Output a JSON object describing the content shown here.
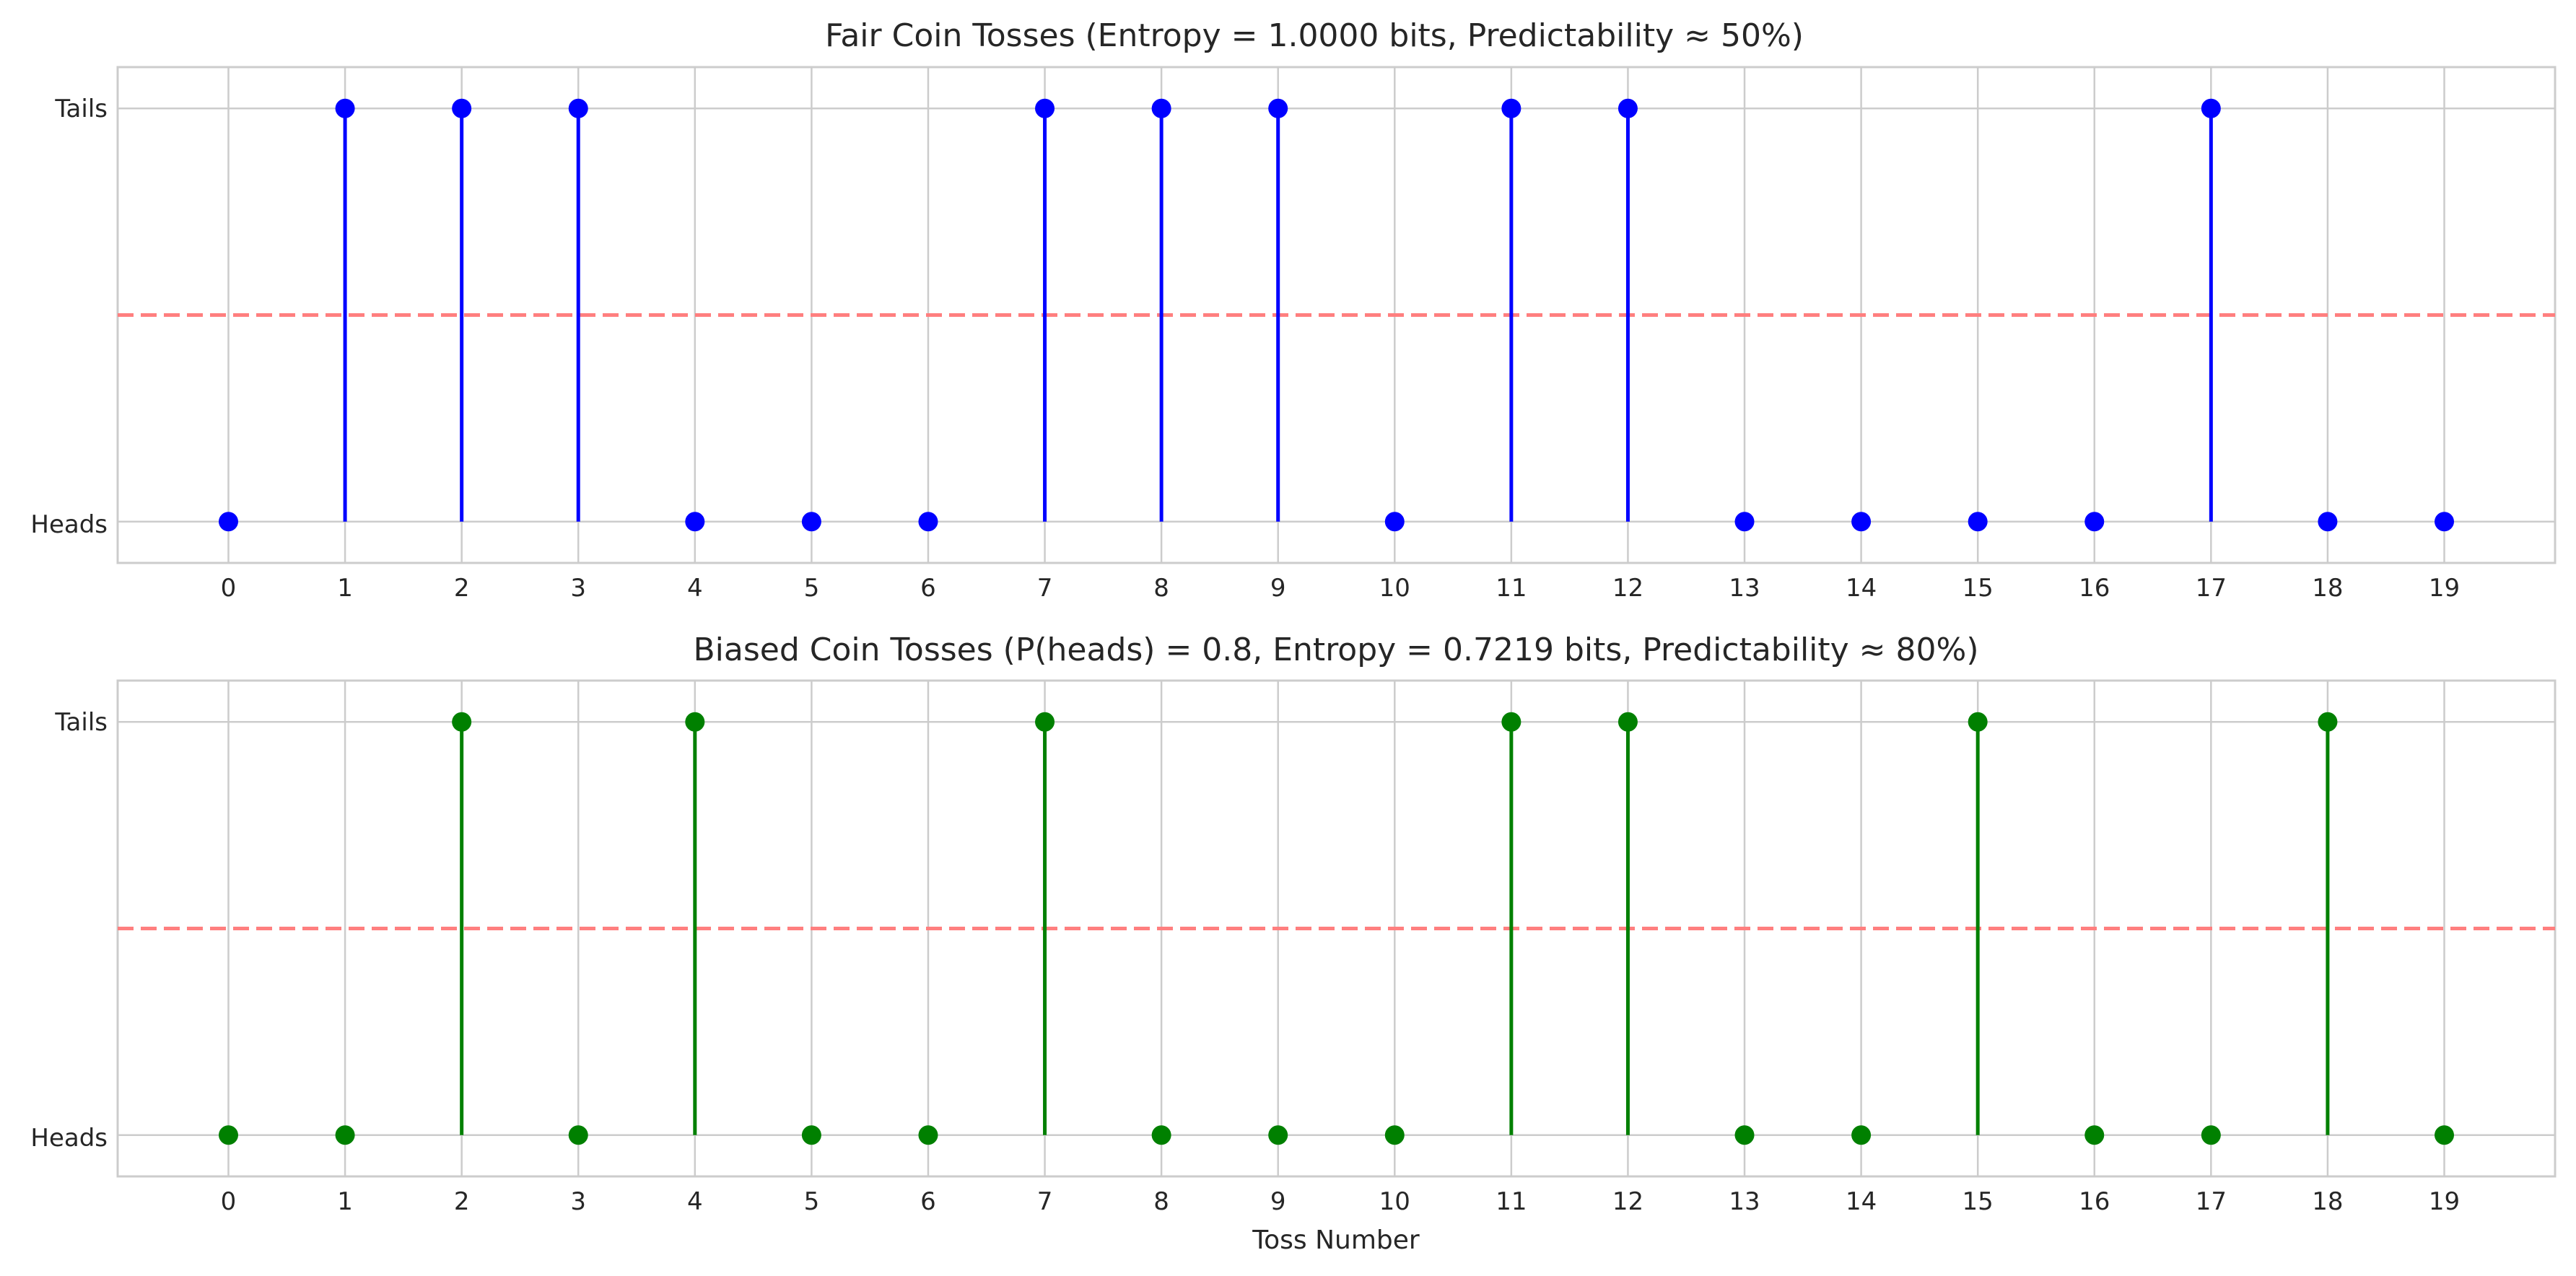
{
  "chart_data": [
    {
      "type": "stem",
      "title": "Fair Coin Tosses (Entropy = 1.0000 bits, Predictability ≈ 50%)",
      "xlabel": "",
      "ylabel": "",
      "y_tick_labels": [
        "Heads",
        "Tails"
      ],
      "x": [
        0,
        1,
        2,
        3,
        4,
        5,
        6,
        7,
        8,
        9,
        10,
        11,
        12,
        13,
        14,
        15,
        16,
        17,
        18,
        19
      ],
      "values": [
        0,
        1,
        1,
        1,
        0,
        0,
        0,
        1,
        1,
        1,
        0,
        1,
        1,
        0,
        0,
        0,
        0,
        1,
        0,
        0
      ],
      "value_meaning": {
        "0": "Heads",
        "1": "Tails"
      },
      "reference_line": {
        "y": 0.5,
        "style": "dashed",
        "color": "#ff7f7f"
      },
      "color": "#0000ff",
      "xlim": [
        -0.95,
        19.95
      ],
      "ylim": [
        -0.1,
        1.1
      ],
      "grid": true
    },
    {
      "type": "stem",
      "title": "Biased Coin Tosses (P(heads) = 0.8, Entropy = 0.7219 bits, Predictability ≈ 80%)",
      "xlabel": "Toss Number",
      "ylabel": "",
      "y_tick_labels": [
        "Heads",
        "Tails"
      ],
      "x": [
        0,
        1,
        2,
        3,
        4,
        5,
        6,
        7,
        8,
        9,
        10,
        11,
        12,
        13,
        14,
        15,
        16,
        17,
        18,
        19
      ],
      "values": [
        0,
        0,
        1,
        0,
        1,
        0,
        0,
        1,
        0,
        0,
        0,
        1,
        1,
        0,
        0,
        1,
        0,
        0,
        1,
        0
      ],
      "value_meaning": {
        "0": "Heads",
        "1": "Tails"
      },
      "reference_line": {
        "y": 0.5,
        "style": "dashed",
        "color": "#ff7f7f"
      },
      "color": "#008000",
      "xlim": [
        -0.95,
        19.95
      ],
      "ylim": [
        -0.1,
        1.1
      ],
      "grid": true
    }
  ]
}
